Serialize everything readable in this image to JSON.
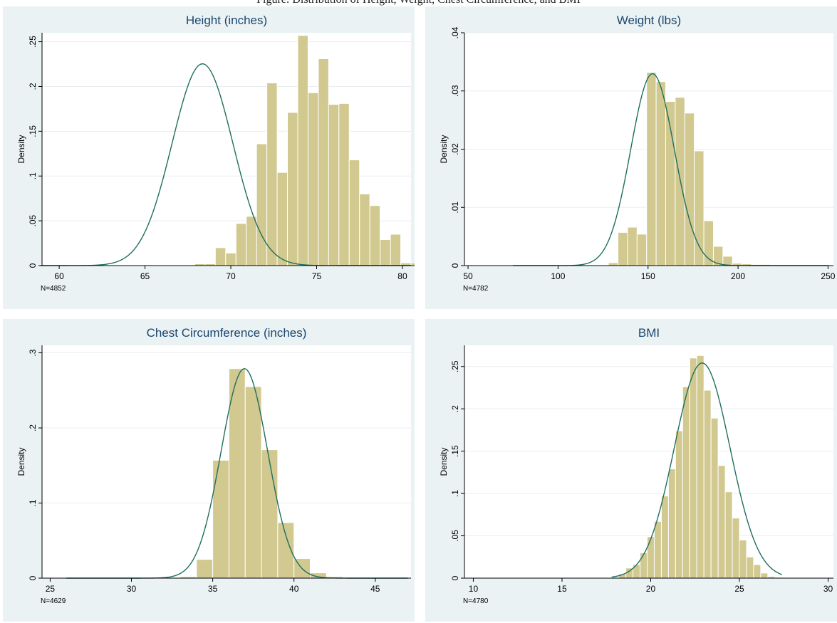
{
  "caption": "Figure: Distribution of Height, Weight, Chest Circumference, and BMI",
  "style": {
    "bar_fill": "#d1c98f",
    "bar_stroke": "#ffffff",
    "curve_color": "#1f6f5f",
    "panel_bg": "#eaf2f3",
    "plot_bg": "#ffffff",
    "grid_color": "#e8eef0"
  },
  "chart_data": [
    {
      "type": "bar",
      "title": "Height (inches)",
      "ylabel": "Density",
      "xlabel": "",
      "note": "N=4852",
      "xlim": [
        59,
        80.5
      ],
      "ylim": [
        0,
        0.26
      ],
      "xticks": [
        60,
        65,
        70,
        75,
        80
      ],
      "xtick_labels": [
        "60",
        "65",
        "70",
        "75",
        "80"
      ],
      "yticks": [
        0,
        0.05,
        0.1,
        0.15,
        0.2,
        0.25
      ],
      "ytick_labels": [
        "0",
        ".05",
        ".1",
        ".15",
        ".2",
        ".25"
      ],
      "grid": true,
      "bins": {
        "start": 58.9,
        "width": 0.6,
        "values": [
          0.001,
          0,
          0,
          0,
          0,
          0,
          0,
          0,
          0,
          0,
          0,
          0,
          0,
          0,
          0,
          0.002,
          0.002,
          0.02,
          0.014,
          0.047,
          0.055,
          0.136,
          0.204,
          0.104,
          0.171,
          0.257,
          0.193,
          0.231,
          0.18,
          0.181,
          0.118,
          0.08,
          0.067,
          0.029,
          0.035,
          0.003,
          0.003,
          0.003,
          0.003,
          0.002,
          0,
          0.001,
          0.001,
          0,
          0,
          0,
          0,
          0,
          0,
          0,
          0,
          0,
          0,
          0,
          0.001,
          0.001
        ]
      },
      "normal_curve": {
        "mean": 68.35,
        "sd": 1.77
      }
    },
    {
      "type": "bar",
      "title": "Weight (lbs)",
      "ylabel": "Density",
      "xlabel": "",
      "note": "N=4782",
      "xlim": [
        48,
        253
      ],
      "ylim": [
        0,
        0.04
      ],
      "xticks": [
        50,
        100,
        150,
        200,
        250
      ],
      "xtick_labels": [
        "50",
        "100",
        "150",
        "200",
        "250"
      ],
      "yticks": [
        0,
        0.01,
        0.02,
        0.03,
        0.04
      ],
      "ytick_labels": [
        "0",
        ".01",
        ".02",
        ".03",
        ".04"
      ],
      "grid": true,
      "bins": {
        "start": 75,
        "width": 5.3,
        "values": [
          0.0001,
          0,
          0,
          0,
          0,
          0,
          0,
          0,
          0,
          0,
          0.0005,
          0.0057,
          0.0066,
          0.0054,
          0.0332,
          0.0316,
          0.0282,
          0.0289,
          0.0262,
          0.0197,
          0.0077,
          0.0033,
          0.0016,
          0.0004,
          0.0003,
          0.0002,
          0.0002,
          0.0001,
          0.0001,
          0.0001,
          0.0001,
          0,
          0.0001
        ]
      },
      "normal_curve": {
        "mean": 152.5,
        "sd": 12.1
      }
    },
    {
      "type": "bar",
      "title": "Chest Circumference (inches)",
      "ylabel": "Density",
      "xlabel": "",
      "note": "N=4629",
      "xlim": [
        24.5,
        47.2
      ],
      "ylim": [
        0,
        0.31
      ],
      "xticks": [
        25,
        30,
        35,
        40,
        45
      ],
      "xtick_labels": [
        "25",
        "30",
        "35",
        "40",
        "45"
      ],
      "yticks": [
        0,
        0.1,
        0.2,
        0.3
      ],
      "ytick_labels": [
        "0",
        ".1",
        ".2",
        ".3"
      ],
      "grid": true,
      "bins": {
        "start": 26,
        "width": 1.0,
        "values": [
          0.001,
          0.001,
          0.001,
          0.001,
          0.001,
          0.001,
          0.001,
          0.002,
          0.025,
          0.157,
          0.279,
          0.255,
          0.171,
          0.074,
          0.026,
          0.007,
          0.002,
          0.001,
          0.001,
          0.001,
          0.001
        ]
      },
      "normal_curve": {
        "mean": 36.95,
        "sd": 1.43
      }
    },
    {
      "type": "bar",
      "title": "BMI",
      "ylabel": "Density",
      "xlabel": "",
      "note": "N=4780",
      "xlim": [
        9.5,
        30.3
      ],
      "ylim": [
        0,
        0.275
      ],
      "xticks": [
        10,
        15,
        20,
        25,
        30
      ],
      "xtick_labels": [
        "10",
        "15",
        "20",
        "25",
        "30"
      ],
      "yticks": [
        0,
        0.05,
        0.1,
        0.15,
        0.2,
        0.25
      ],
      "ytick_labels": [
        "0",
        ".05",
        ".1",
        ".15",
        ".2",
        ".25"
      ],
      "grid": true,
      "bins": {
        "start": 17.8,
        "width": 0.4,
        "values": [
          0.001,
          0.005,
          0.012,
          0.016,
          0.03,
          0.049,
          0.067,
          0.097,
          0.129,
          0.174,
          0.226,
          0.26,
          0.263,
          0.222,
          0.189,
          0.133,
          0.102,
          0.071,
          0.045,
          0.025,
          0.016,
          0.006,
          0.002,
          0.001
        ]
      },
      "normal_curve": {
        "mean": 22.9,
        "sd": 1.57
      }
    }
  ]
}
